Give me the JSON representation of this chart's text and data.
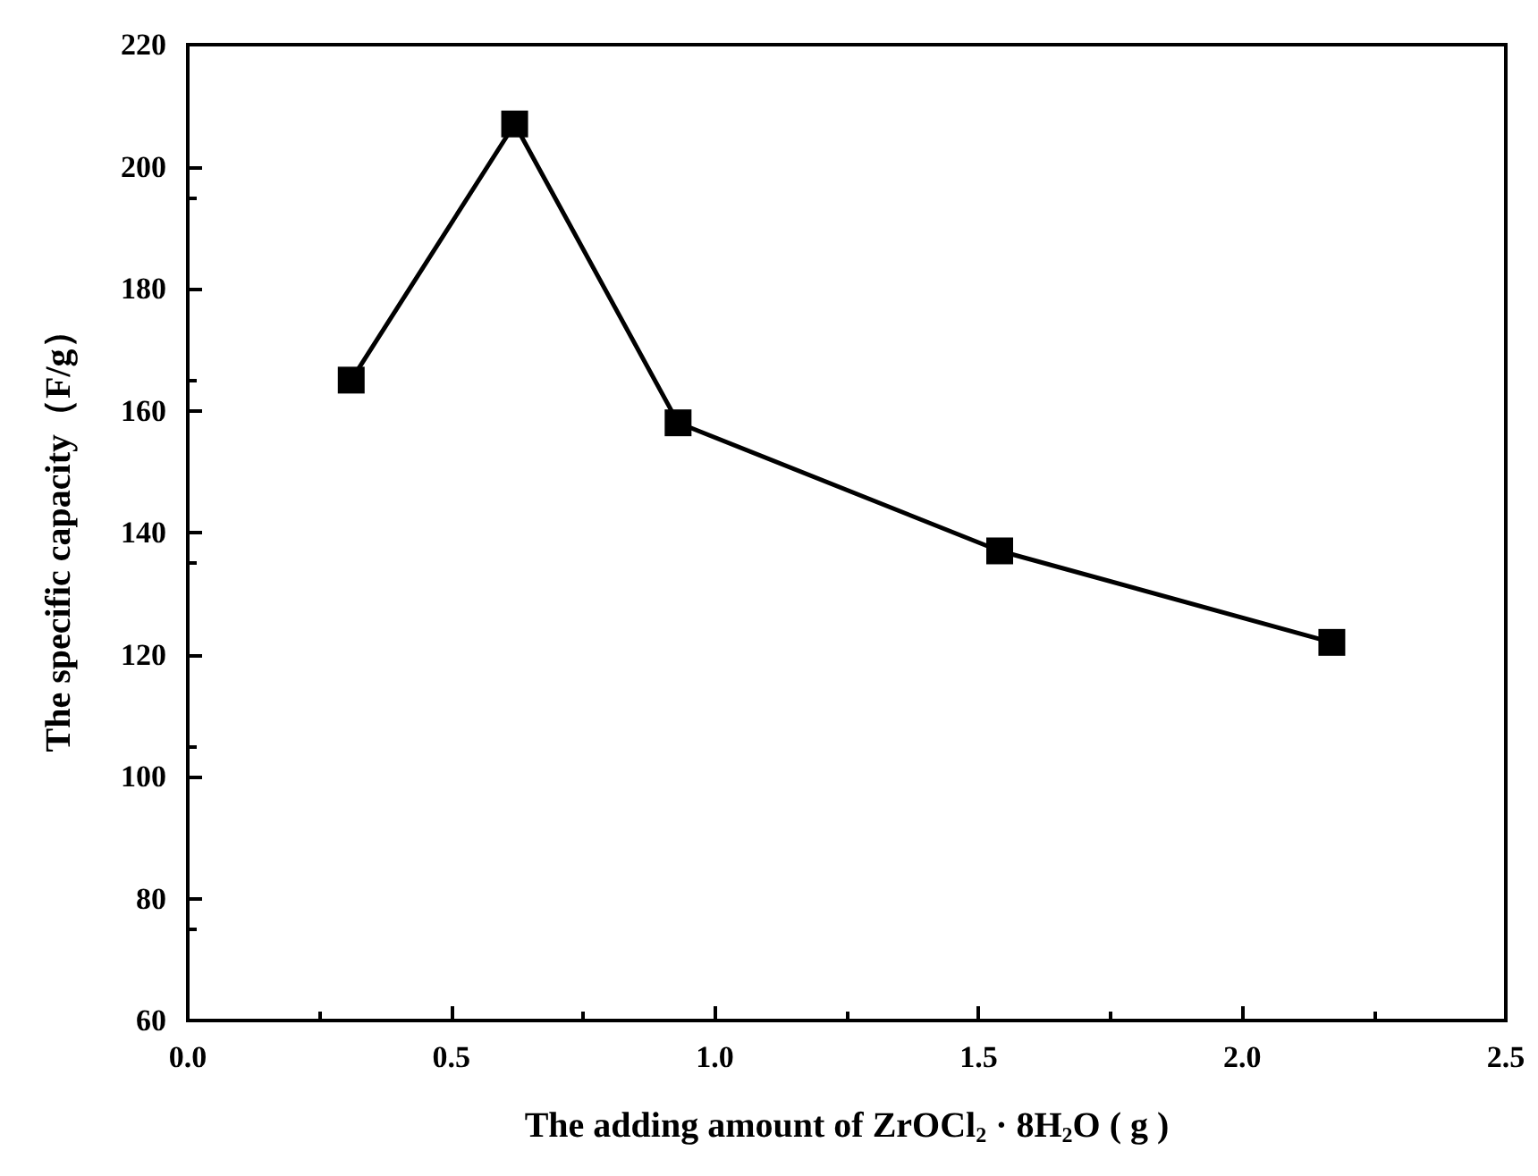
{
  "chart_data": {
    "type": "line",
    "xlabel": "The adding amount of ZrOCl$_{2}$ · 8H$_{2}$O ( g )",
    "ylabel": "The specific capacity（F/g）",
    "x": [
      0.31,
      0.62,
      0.93,
      1.54,
      2.17
    ],
    "series": [
      {
        "color": "#000000",
        "values": [
          165,
          207,
          158,
          137,
          122
        ]
      }
    ],
    "xlim": [
      0,
      2.5
    ],
    "xticks": [
      {
        "value": 0,
        "label": "0.0"
      },
      {
        "value": 0.5,
        "label": "0.5"
      },
      {
        "value": 1,
        "label": "1.0"
      },
      {
        "value": 1.5,
        "label": "1.5"
      },
      {
        "value": 2,
        "label": "2.0"
      },
      {
        "value": 2.5,
        "label": "2.5"
      }
    ],
    "ylim": [
      60,
      220
    ],
    "yticks": [
      60,
      80,
      100,
      120,
      140,
      160,
      180,
      200,
      220
    ],
    "marker": "square",
    "line_style": "solid",
    "grid": false
  }
}
